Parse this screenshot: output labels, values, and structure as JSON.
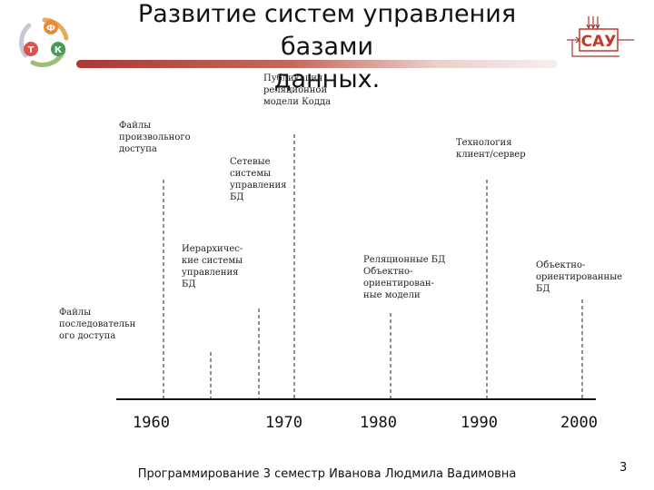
{
  "slide": {
    "title_line1": "Развитие систем управления базами",
    "title_line2": "данных.",
    "footer": "Программирование 3 семестр Иванова Людмила Вадимовна",
    "page_number": "3"
  },
  "logos": {
    "left": {
      "letters": [
        "Ф",
        "Т",
        "К"
      ],
      "colors": [
        "#e88b3a",
        "#d9534f",
        "#4a9a5a"
      ]
    },
    "right": {
      "text": "САУ",
      "color": "#c0392b"
    }
  },
  "timeline": {
    "years": [
      "1960",
      "1970",
      "1980",
      "1990",
      "2000"
    ],
    "labels": {
      "sequential_files": "Файлы последовательн ого доступа",
      "random_files": "Файлы произвольного доступа",
      "hierarchical": "Иерархичес- кие системы управления БД",
      "network": "Сетевые системы управления БД",
      "codd": "Публикация реляционной модели Кодда",
      "relational": "Реляционные БД Объектно- ориентирован- ные модели",
      "client_server": "Технология клиент/сервер",
      "object_oriented": "Объектно- ориентированные БД"
    }
  },
  "colors": {
    "accent": "#a93836",
    "axis": "#111111"
  }
}
